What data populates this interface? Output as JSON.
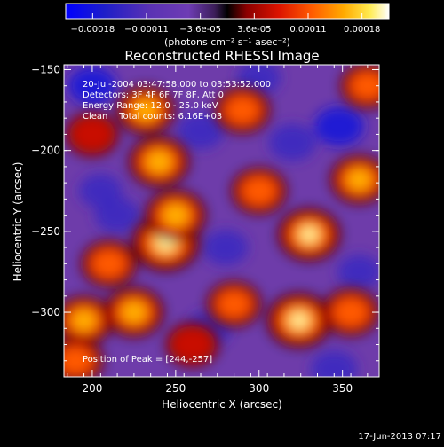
{
  "chart_data": {
    "type": "heatmap",
    "title": "Reconstructed RHESSI Image",
    "xlabel": "Heliocentric X (arcsec)",
    "ylabel": "Heliocentric Y (arcsec)",
    "xlim": [
      183,
      372
    ],
    "ylim": [
      -340,
      -147
    ],
    "x_ticks": [
      200,
      250,
      300,
      350
    ],
    "y_ticks": [
      -150,
      -200,
      -250,
      -300
    ],
    "colorbar": {
      "tick_labels": [
        "-0.00018",
        "-0.00011",
        "-3.6e-05",
        "3.6e-05",
        "0.00011",
        "0.00018"
      ],
      "units": "(photons cm⁻² s⁻¹ asec⁻²)",
      "range": [
        -0.00018,
        0.00018
      ]
    },
    "annotation_lines": [
      "20-Jul-2004 03:47:58.000 to 03:53:52.000",
      "Detectors: 3F 4F 6F 7F 8F, Att 0",
      "Energy Range: 12.0 - 25.0 keV",
      "Clean    Total counts: 6.16E+03"
    ],
    "peak_label": "Position of Peak = [244,-257]",
    "peak_position": [
      244,
      -257
    ],
    "sources": [
      {
        "x": 244,
        "y": -257,
        "value": 0.00018
      },
      {
        "x": 324,
        "y": -305,
        "value": 0.00016
      },
      {
        "x": 330,
        "y": -252,
        "value": 0.00014
      },
      {
        "x": 250,
        "y": -240,
        "value": 0.00012
      },
      {
        "x": 240,
        "y": -207,
        "value": 0.00012
      },
      {
        "x": 232,
        "y": -175,
        "value": 0.0001
      },
      {
        "x": 360,
        "y": -218,
        "value": 0.0001
      },
      {
        "x": 355,
        "y": -300,
        "value": 9e-05
      },
      {
        "x": 195,
        "y": -305,
        "value": 0.0001
      },
      {
        "x": 225,
        "y": -300,
        "value": 0.00011
      },
      {
        "x": 290,
        "y": -175,
        "value": 8e-05
      },
      {
        "x": 300,
        "y": -225,
        "value": 8e-05
      },
      {
        "x": 365,
        "y": -160,
        "value": 7e-05
      },
      {
        "x": 200,
        "y": -190,
        "value": 6e-05
      },
      {
        "x": 210,
        "y": -270,
        "value": 8e-05
      },
      {
        "x": 260,
        "y": -320,
        "value": 6e-05
      },
      {
        "x": 190,
        "y": -330,
        "value": 8e-05
      },
      {
        "x": 285,
        "y": -295,
        "value": 7e-05
      }
    ],
    "negative_regions": [
      {
        "x": 348,
        "y": -185,
        "value": -0.00018
      },
      {
        "x": 200,
        "y": -160,
        "value": -0.00016
      },
      {
        "x": 265,
        "y": -188,
        "value": -0.00014
      },
      {
        "x": 320,
        "y": -195,
        "value": -0.00015
      },
      {
        "x": 215,
        "y": -240,
        "value": -0.00012
      },
      {
        "x": 280,
        "y": -260,
        "value": -0.00012
      },
      {
        "x": 270,
        "y": -310,
        "value": -0.00011
      },
      {
        "x": 345,
        "y": -335,
        "value": -0.00014
      },
      {
        "x": 205,
        "y": -225,
        "value": -0.0001
      },
      {
        "x": 360,
        "y": -275,
        "value": -0.0001
      },
      {
        "x": 300,
        "y": -155,
        "value": -0.0001
      }
    ]
  },
  "footer": {
    "timestamp": "17-Jun-2013 07:17"
  }
}
